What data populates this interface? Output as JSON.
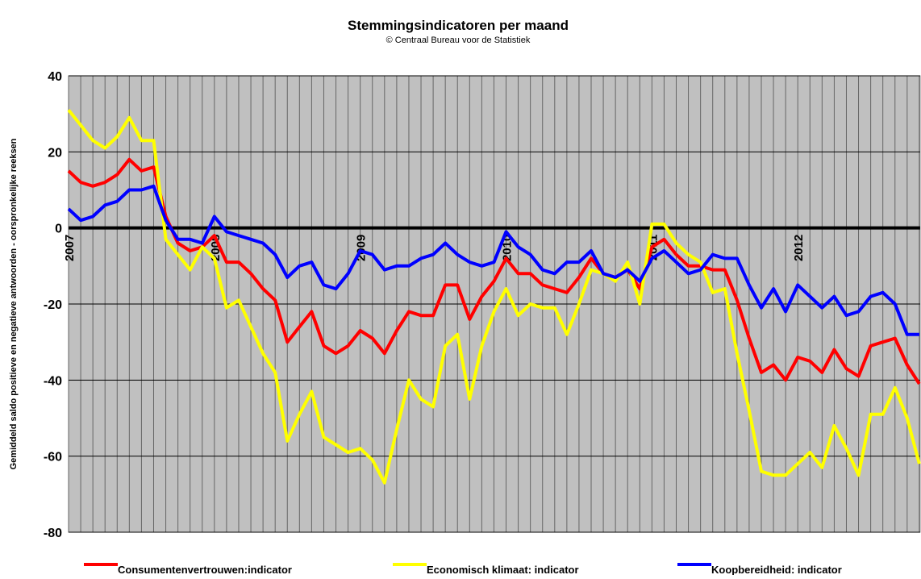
{
  "chart_data": {
    "type": "line",
    "title": "Stemmingsindicatoren per maand",
    "subtitle": "© Centraal Bureau voor de Statistiek",
    "y_label": "Gemiddeld saldo positieve en negatieve antwoorden - oorspronkelijke reeksen",
    "categories": [
      "2007",
      null,
      null,
      null,
      null,
      null,
      null,
      null,
      null,
      null,
      null,
      null,
      "2008",
      null,
      null,
      null,
      null,
      null,
      null,
      null,
      null,
      null,
      null,
      null,
      "2009",
      null,
      null,
      null,
      null,
      null,
      null,
      null,
      null,
      null,
      null,
      null,
      "2010",
      null,
      null,
      null,
      null,
      null,
      null,
      null,
      null,
      null,
      null,
      null,
      "2011",
      null,
      null,
      null,
      null,
      null,
      null,
      null,
      null,
      null,
      null,
      null,
      "2012",
      null,
      null,
      null,
      null,
      null,
      null,
      null,
      null,
      null,
      null
    ],
    "ylim": [
      -80,
      40
    ],
    "yticks": [
      -80,
      -60,
      -40,
      -20,
      0,
      20,
      40
    ],
    "grid": true,
    "legend": "bottom",
    "series": [
      {
        "name": "Consumentenvertrouwen:indicator",
        "color": "#ff0000",
        "values": [
          15,
          12,
          11,
          12,
          14,
          18,
          15,
          16,
          3,
          -4,
          -6,
          -5,
          -2,
          -9,
          -9,
          -12,
          -16,
          -19,
          -30,
          -26,
          -22,
          -31,
          -33,
          -31,
          -27,
          -29,
          -33,
          -27,
          -22,
          -23,
          -23,
          -15,
          -15,
          -24,
          -18,
          -14,
          -8,
          -12,
          -12,
          -15,
          -16,
          -17,
          -13,
          -8,
          -12,
          -13,
          -11,
          -16,
          -5,
          -3,
          -7,
          -10,
          -10,
          -11,
          -11,
          -19,
          -29,
          -38,
          -36,
          -40,
          -34,
          -35,
          -38,
          -32,
          -37,
          -39,
          -31,
          -30,
          -29,
          -36,
          -41
        ]
      },
      {
        "name": "Economisch klimaat: indicator",
        "color": "#ffff00",
        "values": [
          31,
          27,
          23,
          21,
          24,
          29,
          23,
          23,
          -3,
          -7,
          -11,
          -5,
          -8,
          -21,
          -19,
          -26,
          -33,
          -38,
          -56,
          -49,
          -43,
          -55,
          -57,
          -59,
          -58,
          -61,
          -67,
          -53,
          -40,
          -45,
          -47,
          -31,
          -28,
          -45,
          -31,
          -22,
          -16,
          -23,
          -20,
          -21,
          -21,
          -28,
          -20,
          -11,
          -12,
          -14,
          -9,
          -20,
          1,
          1,
          -4,
          -7,
          -9,
          -17,
          -16,
          -33,
          -48,
          -64,
          -65,
          -65,
          -62,
          -59,
          -63,
          -52,
          -58,
          -65,
          -49,
          -49,
          -42,
          -50,
          -62
        ]
      },
      {
        "name": "Koopbereidheid: indicator",
        "color": "#0000ff",
        "values": [
          5,
          2,
          3,
          6,
          7,
          10,
          10,
          11,
          2,
          -3,
          -3,
          -4,
          3,
          -1,
          -2,
          -3,
          -4,
          -7,
          -13,
          -10,
          -9,
          -15,
          -16,
          -12,
          -6,
          -7,
          -11,
          -10,
          -10,
          -8,
          -7,
          -4,
          -7,
          -9,
          -10,
          -9,
          -1,
          -5,
          -7,
          -11,
          -12,
          -9,
          -9,
          -6,
          -12,
          -13,
          -11,
          -14,
          -8,
          -6,
          -9,
          -12,
          -11,
          -7,
          -8,
          -8,
          -15,
          -21,
          -16,
          -22,
          -15,
          -18,
          -21,
          -18,
          -23,
          -22,
          -18,
          -17,
          -20,
          -28,
          -28
        ]
      }
    ]
  }
}
